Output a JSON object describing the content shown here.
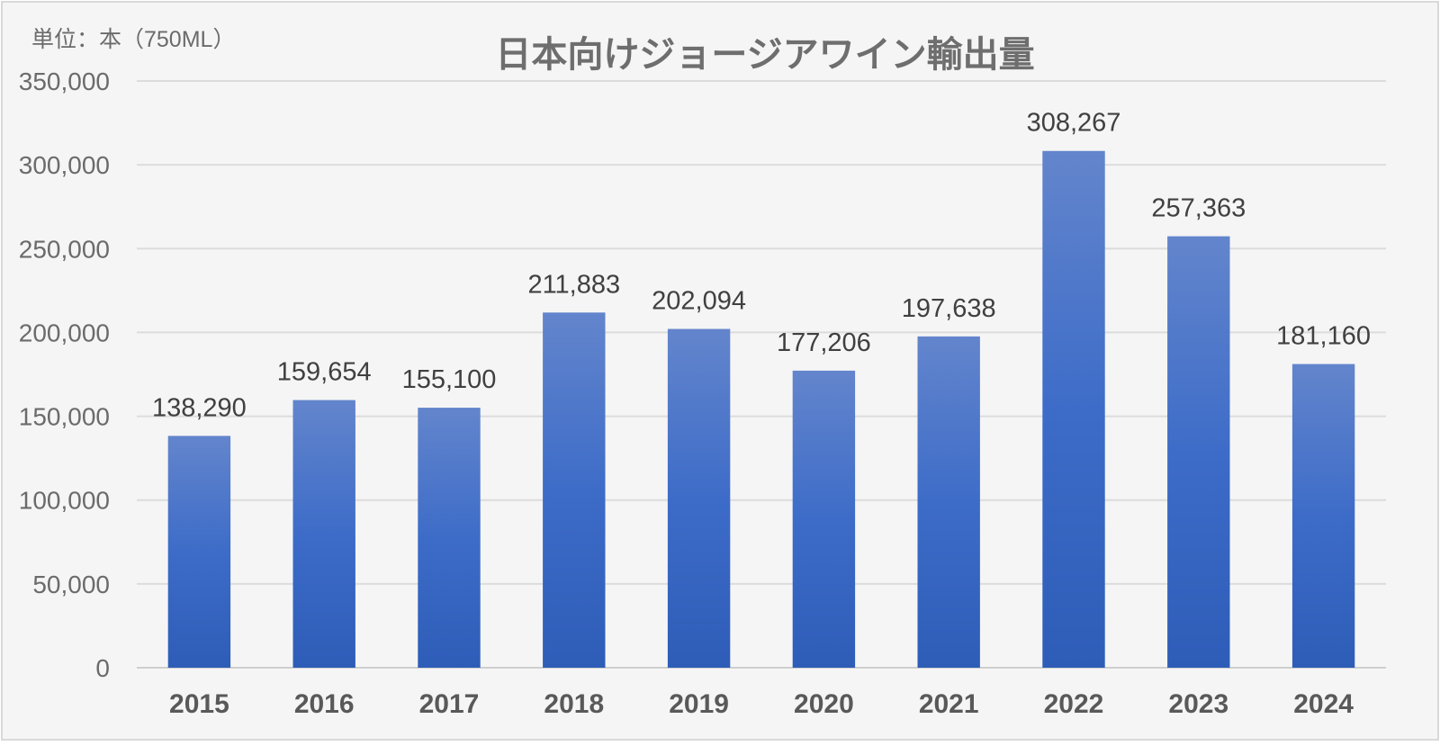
{
  "chart_data": {
    "type": "bar",
    "title": "日本向けジョージアワイン輸出量",
    "unit_label": "単位：本（750ML）",
    "xlabel": "",
    "ylabel": "",
    "ylim": [
      0,
      350000
    ],
    "y_ticks": [
      0,
      50000,
      100000,
      150000,
      200000,
      250000,
      300000,
      350000
    ],
    "y_tick_labels": [
      "0",
      "50,000",
      "100,000",
      "150,000",
      "200,000",
      "250,000",
      "300,000",
      "350,000"
    ],
    "categories": [
      "2015",
      "2016",
      "2017",
      "2018",
      "2019",
      "2020",
      "2021",
      "2022",
      "2023",
      "2024"
    ],
    "values": [
      138290,
      159654,
      155100,
      211883,
      202094,
      177206,
      197638,
      308267,
      257363,
      181160
    ],
    "value_labels": [
      "138,290",
      "159,654",
      "155,100",
      "211,883",
      "202,094",
      "177,206",
      "197,638",
      "308,267",
      "257,363",
      "181,160"
    ],
    "grid": true,
    "legend": "none",
    "colors": {
      "bar_top": "#6385cc",
      "bar_mid": "#3d6cc8",
      "bar_bottom": "#2e5db8",
      "background": "#f5f5f5",
      "border": "#d9d9d9"
    }
  }
}
